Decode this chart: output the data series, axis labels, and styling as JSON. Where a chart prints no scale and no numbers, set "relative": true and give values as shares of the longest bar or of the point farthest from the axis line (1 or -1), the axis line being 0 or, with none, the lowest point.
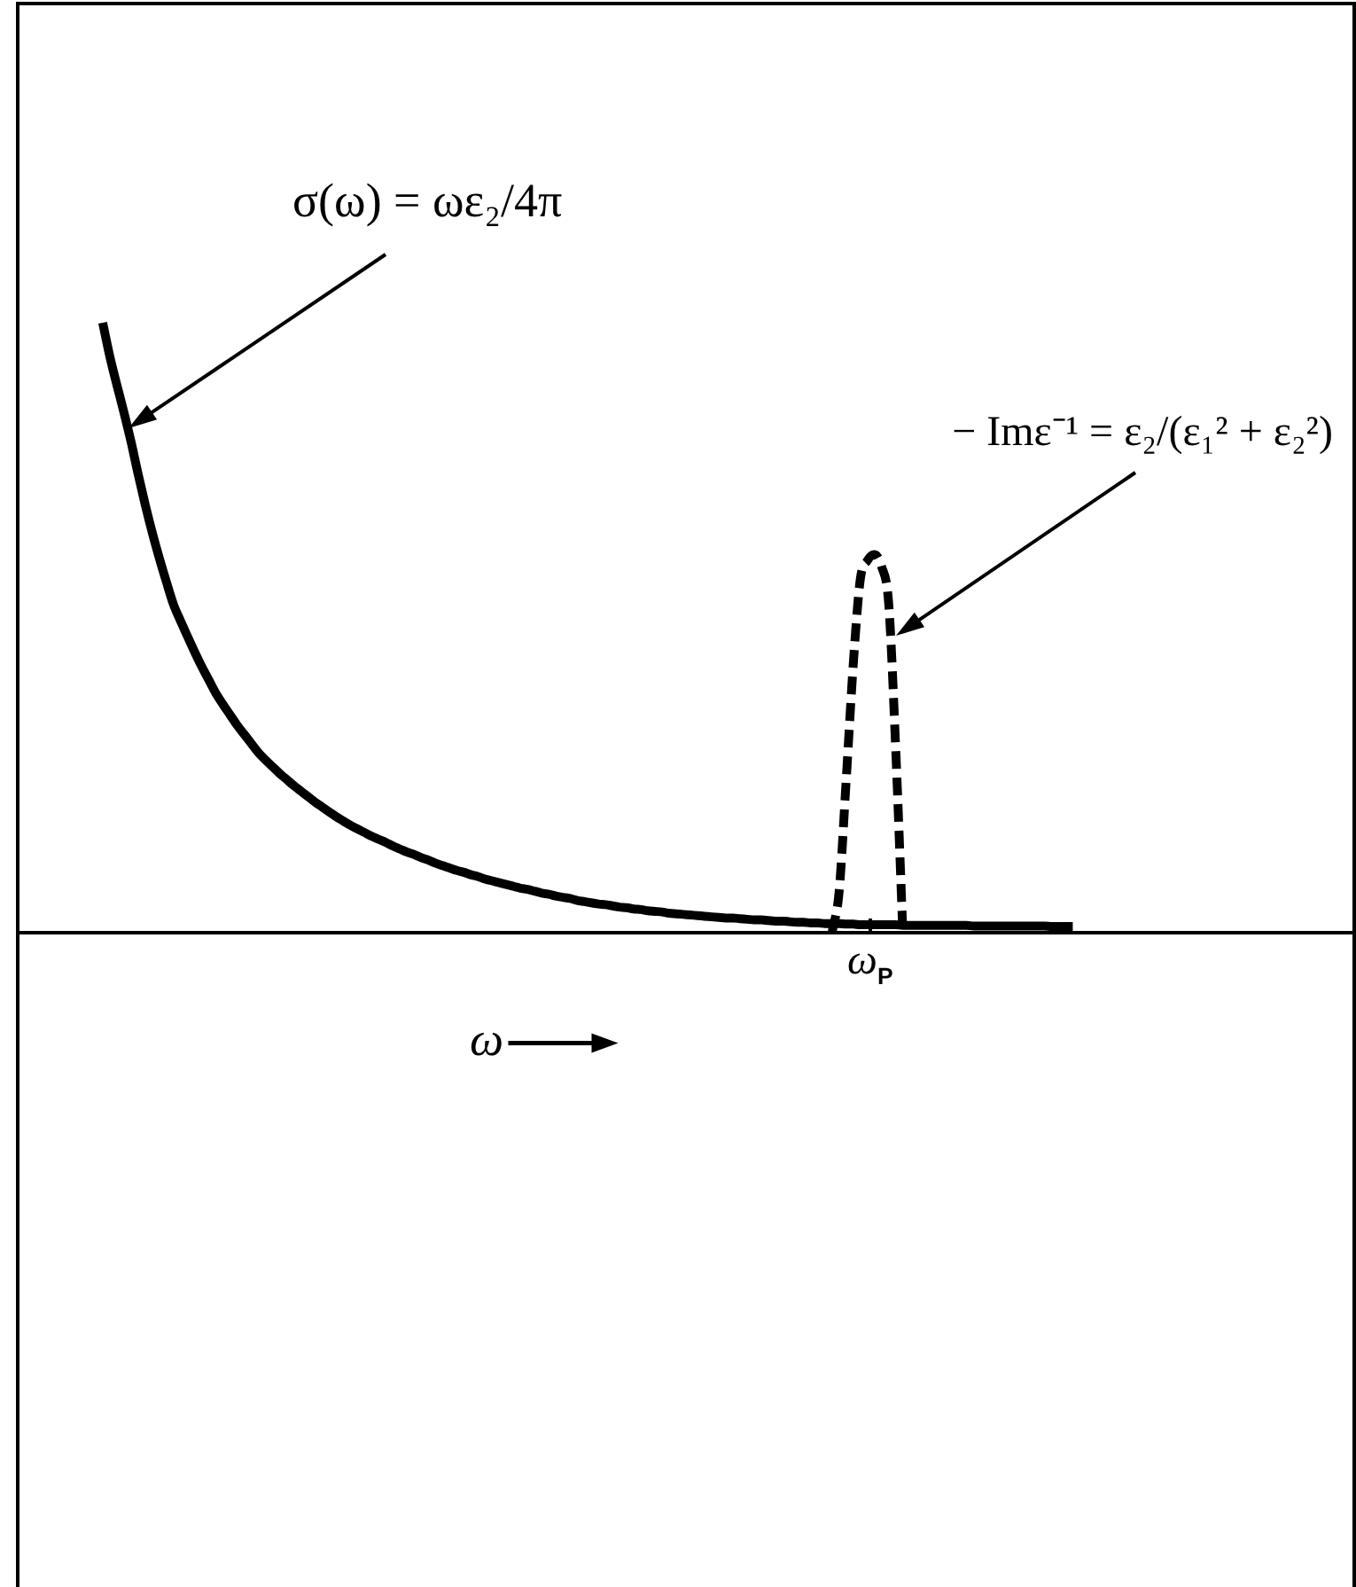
{
  "chart_data": {
    "type": "line",
    "relative": true,
    "xlabel": "ω",
    "annotations": [
      "ω$_{P}$"
    ],
    "categories": [
      null,
      null,
      null,
      null,
      null,
      null,
      null,
      null,
      null,
      null,
      null,
      null,
      null,
      null,
      null,
      null,
      null,
      null,
      null,
      null,
      null,
      null,
      null,
      null,
      null,
      null,
      null,
      null,
      null,
      null,
      null,
      null,
      null,
      null,
      null,
      null,
      null,
      null,
      null,
      null,
      null,
      null,
      null,
      null,
      null,
      null,
      null,
      null,
      null,
      null,
      null,
      null,
      null,
      null,
      null,
      null,
      null,
      null,
      null,
      null,
      null,
      null,
      null,
      null,
      null,
      null,
      null,
      null,
      null,
      null,
      null,
      null,
      null,
      null,
      null,
      null,
      null,
      null,
      null,
      null,
      null,
      null,
      null,
      null,
      null,
      null,
      null,
      null,
      null,
      null,
      null,
      null,
      null,
      null,
      null,
      null,
      null,
      null,
      null,
      null,
      null,
      null,
      null,
      null,
      null,
      null,
      null,
      null,
      null,
      null,
      null,
      null,
      null,
      null,
      null,
      null,
      null,
      null,
      null,
      null,
      null,
      null,
      null,
      null,
      null,
      null,
      null,
      null,
      null,
      null,
      null,
      null,
      null,
      null,
      null,
      null,
      null,
      null,
      null,
      null,
      null,
      null,
      null,
      null,
      null,
      null,
      null,
      null,
      null,
      null,
      null,
      null,
      null,
      null,
      null,
      null,
      null,
      null,
      null,
      null,
      null,
      null,
      null,
      null,
      null,
      null,
      null,
      null,
      null,
      null,
      null,
      null,
      null,
      null,
      null,
      null,
      null,
      null,
      null,
      null,
      null,
      null,
      null,
      null,
      null,
      null,
      null,
      null,
      null,
      null
    ],
    "series": [
      {
        "name": "σ(ω) = ωε₂/4π",
        "color": "#000000",
        "line_style": "solid",
        "values": [
          null,
          null,
          null,
          null,
          null,
          null,
          null,
          null,
          null,
          null,
          null,
          null,
          1,
          0.945,
          0.898,
          0.853,
          0.805,
          0.752,
          0.702,
          0.656,
          0.614,
          0.575,
          0.538,
          0.511,
          0.485,
          0.46,
          0.436,
          0.414,
          0.392,
          0.374,
          0.357,
          0.34,
          0.325,
          0.31,
          0.295,
          0.283,
          0.272,
          0.261,
          0.251,
          0.241,
          0.232,
          0.223,
          0.214,
          0.206,
          0.198,
          0.19,
          0.183,
          0.176,
          0.17,
          0.164,
          0.158,
          0.153,
          0.148,
          0.142,
          0.137,
          0.132,
          0.128,
          0.123,
          0.119,
          0.114,
          0.11,
          0.106,
          0.102,
          0.099,
          0.095,
          0.092,
          0.088,
          0.085,
          0.082,
          0.079,
          0.076,
          0.073,
          0.071,
          0.068,
          0.065,
          0.063,
          0.06,
          0.058,
          0.056,
          0.053,
          0.051,
          0.049,
          0.047,
          0.046,
          0.044,
          0.042,
          0.041,
          0.039,
          0.038,
          0.036,
          0.035,
          0.034,
          0.032,
          0.031,
          0.03,
          0.029,
          0.028,
          0.027,
          0.026,
          0.025,
          0.024,
          0.024,
          0.023,
          0.022,
          0.021,
          0.021,
          0.02,
          0.019,
          0.019,
          0.018,
          0.017,
          0.017,
          0.016,
          0.016,
          0.015,
          0.015,
          0.015,
          0.014,
          0.014,
          0.013,
          0.013,
          0.013,
          0.013,
          0.013,
          0.013,
          0.012,
          0.012,
          0.012,
          0.012,
          0.012,
          0.012,
          0.012,
          0.012,
          0.012,
          0.012,
          0.011,
          0.011,
          0.011,
          0.011,
          0.011,
          0.011,
          0.011,
          0.011,
          0.011,
          0.011,
          0.011,
          0.01,
          0.01,
          0.01,
          0.01,
          null,
          null,
          null,
          null,
          null,
          null,
          null,
          null,
          null,
          null,
          null,
          null,
          null,
          null,
          null,
          null,
          null,
          null,
          null,
          null,
          null,
          null,
          null,
          null,
          null,
          null,
          null,
          null,
          null,
          null,
          null,
          null,
          null,
          null,
          null,
          null,
          null,
          null,
          null,
          null
        ]
      },
      {
        "name": "− Imε⁻¹ = ε₂/(ε₁² + ε₂²)",
        "color": "#000000",
        "line_style": "dashed",
        "values": [
          null,
          null,
          null,
          null,
          null,
          null,
          null,
          null,
          null,
          null,
          null,
          null,
          null,
          null,
          null,
          null,
          null,
          null,
          null,
          null,
          null,
          null,
          null,
          null,
          null,
          null,
          null,
          null,
          null,
          null,
          null,
          null,
          null,
          null,
          null,
          null,
          null,
          null,
          null,
          null,
          null,
          null,
          null,
          null,
          null,
          null,
          null,
          null,
          null,
          null,
          null,
          null,
          null,
          null,
          null,
          null,
          null,
          null,
          null,
          null,
          null,
          null,
          null,
          null,
          null,
          null,
          null,
          null,
          null,
          null,
          null,
          null,
          null,
          null,
          null,
          null,
          null,
          null,
          null,
          null,
          null,
          null,
          null,
          null,
          null,
          null,
          null,
          null,
          null,
          null,
          null,
          null,
          null,
          null,
          null,
          null,
          null,
          null,
          null,
          null,
          null,
          null,
          null,
          null,
          null,
          null,
          null,
          null,
          null,
          null,
          null,
          null,
          null,
          null,
          null,
          0,
          0.067,
          0.25,
          0.44,
          0.58,
          0.61,
          0.62,
          0.6,
          0.54,
          0.3,
          0,
          null,
          null,
          null,
          null,
          null,
          null,
          null,
          null,
          null,
          null,
          null,
          null,
          null,
          null,
          null,
          null,
          null,
          null,
          null,
          null,
          null,
          null,
          null,
          null,
          null,
          null,
          null,
          null,
          null,
          null,
          null,
          null,
          null,
          null,
          null,
          null,
          null,
          null,
          null,
          null,
          null,
          null,
          null,
          null,
          null,
          null,
          null,
          null,
          null,
          null,
          null,
          null,
          null,
          null,
          null,
          null,
          null,
          null,
          null,
          null,
          null,
          null,
          null,
          null
        ]
      }
    ]
  }
}
